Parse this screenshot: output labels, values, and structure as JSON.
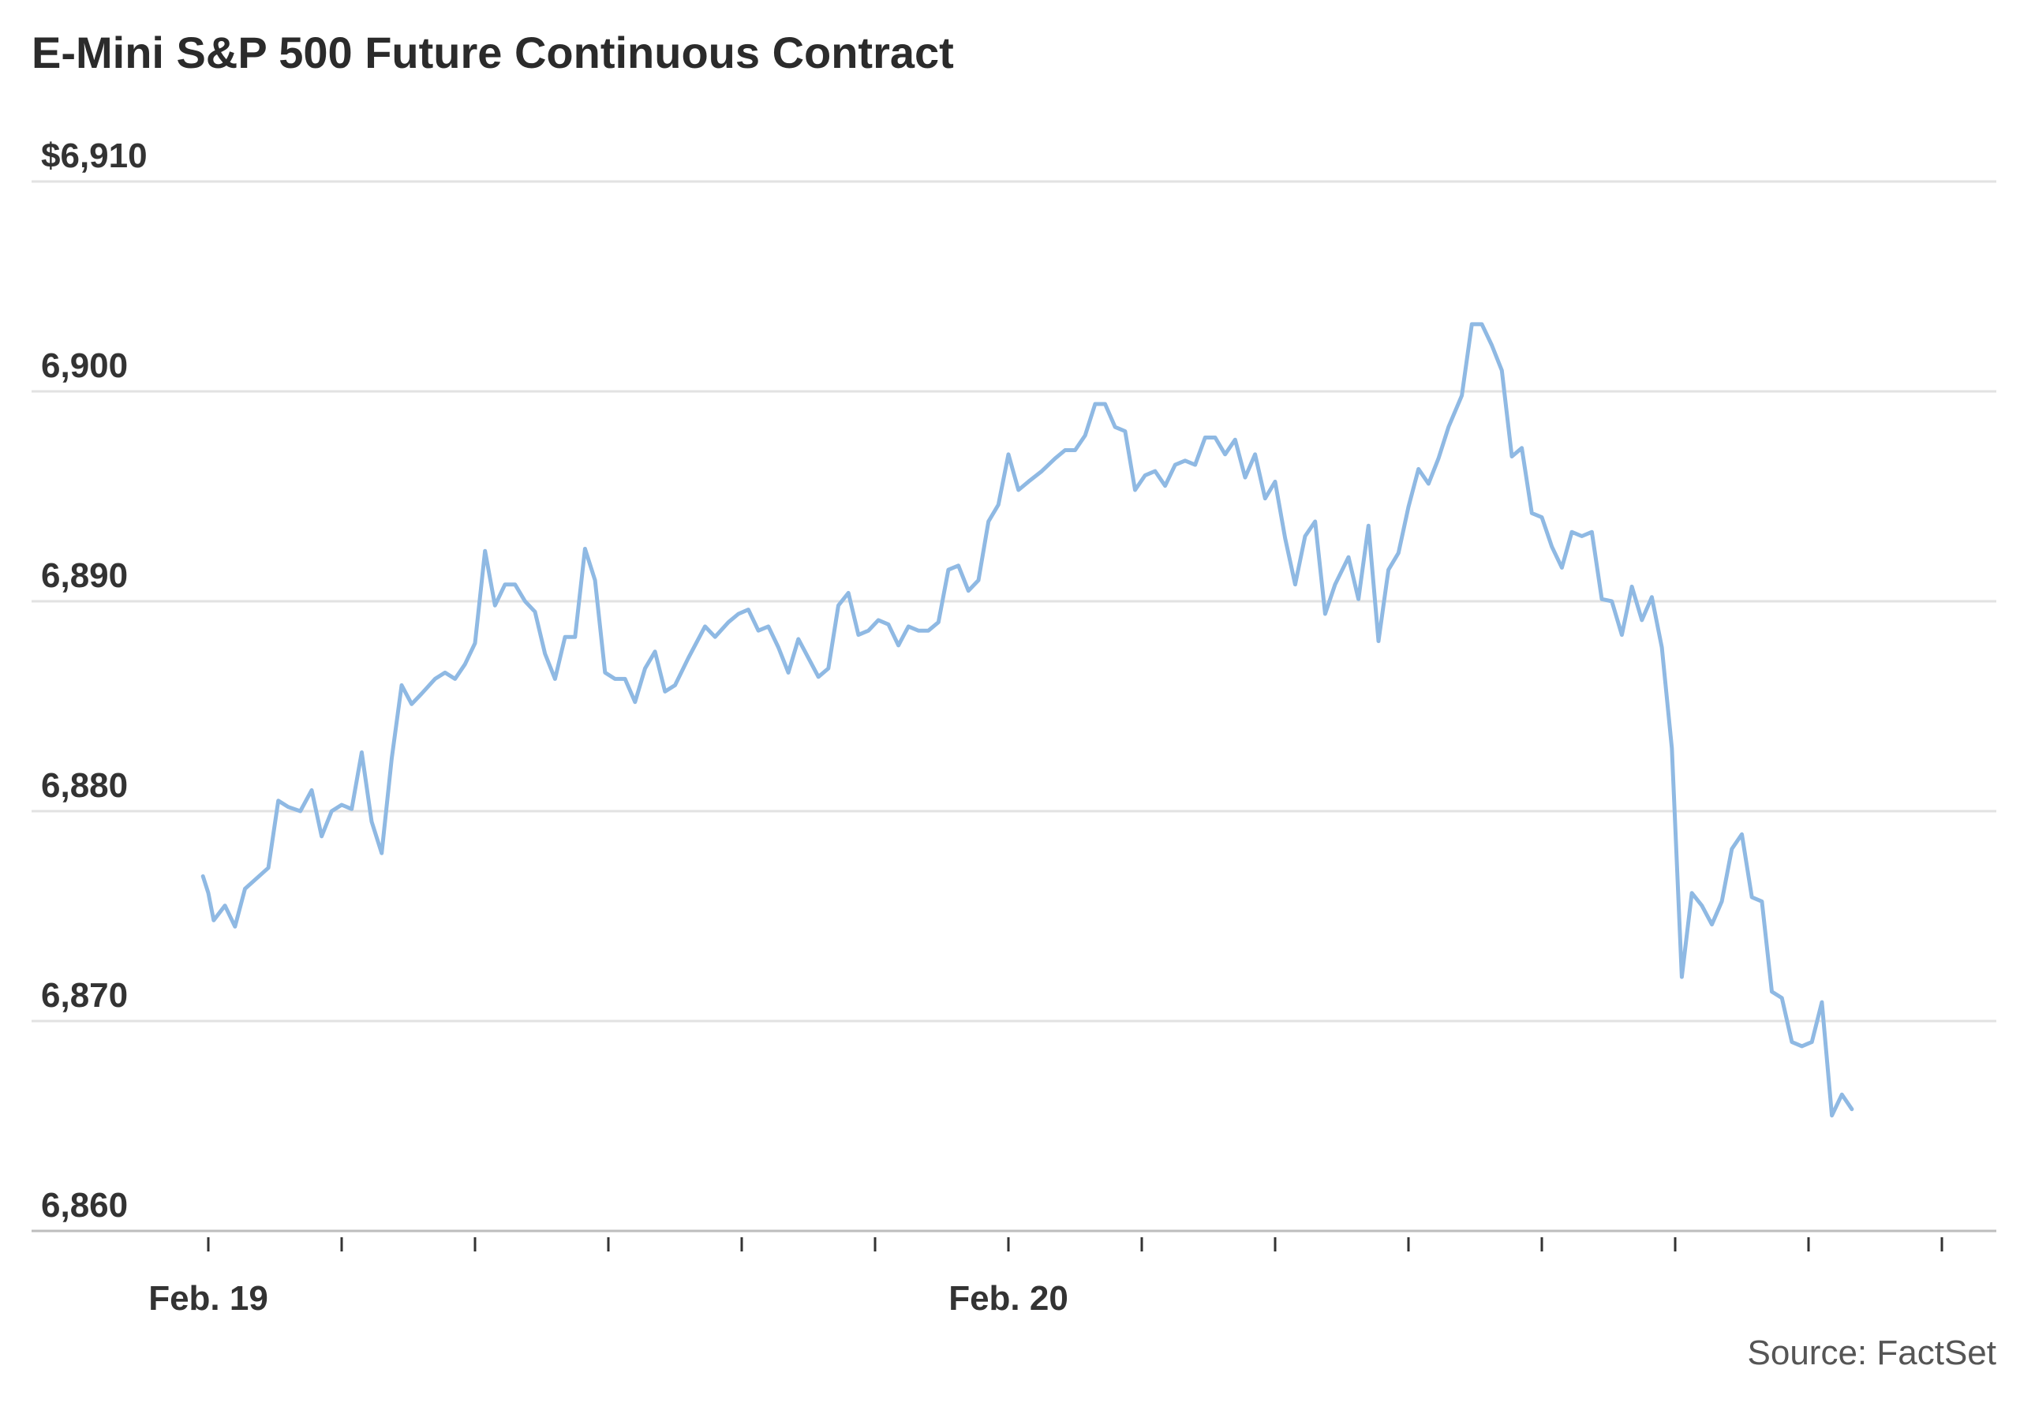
{
  "chart_data": {
    "type": "line",
    "title": "E-Mini S&P 500 Future Continuous Contract",
    "source": "Source: FactSet",
    "ylim": [
      6860,
      6910
    ],
    "y_ticks": [
      {
        "value": 6910,
        "label": "$6,910"
      },
      {
        "value": 6900,
        "label": "6,900"
      },
      {
        "value": 6890,
        "label": "6,890"
      },
      {
        "value": 6880,
        "label": "6,880"
      },
      {
        "value": 6870,
        "label": "6,870"
      },
      {
        "value": 6860,
        "label": "6,860"
      }
    ],
    "x_labels": [
      {
        "t": 0,
        "label": "Feb. 19"
      },
      {
        "t": 12,
        "label": "Feb. 20"
      }
    ],
    "x_minor_ticks": [
      0,
      2,
      4,
      6,
      8,
      10,
      12,
      14,
      16,
      18,
      20,
      22,
      24,
      26
    ],
    "grid": true,
    "line_color": "#8fb9e3",
    "series": [
      {
        "values": [
          [
            -0.08,
            6876.9
          ],
          [
            0.0,
            6876.1
          ],
          [
            0.08,
            6874.8
          ],
          [
            0.25,
            6875.5
          ],
          [
            0.4,
            6874.5
          ],
          [
            0.55,
            6876.3
          ],
          [
            0.9,
            6877.3
          ],
          [
            1.05,
            6880.5
          ],
          [
            1.2,
            6880.2
          ],
          [
            1.38,
            6880.0
          ],
          [
            1.55,
            6881.0
          ],
          [
            1.7,
            6878.8
          ],
          [
            1.85,
            6880.0
          ],
          [
            2.0,
            6880.3
          ],
          [
            2.15,
            6880.1
          ],
          [
            2.3,
            6882.8
          ],
          [
            2.45,
            6879.5
          ],
          [
            2.6,
            6878.0
          ],
          [
            2.75,
            6882.5
          ],
          [
            2.9,
            6886.0
          ],
          [
            3.05,
            6885.1
          ],
          [
            3.2,
            6885.6
          ],
          [
            3.4,
            6886.3
          ],
          [
            3.55,
            6886.6
          ],
          [
            3.7,
            6886.3
          ],
          [
            3.85,
            6887.0
          ],
          [
            4.0,
            6888.0
          ],
          [
            4.15,
            6892.4
          ],
          [
            4.3,
            6889.8
          ],
          [
            4.45,
            6890.8
          ],
          [
            4.6,
            6890.8
          ],
          [
            4.75,
            6890.0
          ],
          [
            4.9,
            6889.5
          ],
          [
            5.05,
            6887.5
          ],
          [
            5.2,
            6886.3
          ],
          [
            5.35,
            6888.3
          ],
          [
            5.5,
            6888.3
          ],
          [
            5.65,
            6892.5
          ],
          [
            5.8,
            6891.0
          ],
          [
            5.95,
            6886.6
          ],
          [
            6.1,
            6886.3
          ],
          [
            6.25,
            6886.3
          ],
          [
            6.4,
            6885.2
          ],
          [
            6.55,
            6886.8
          ],
          [
            6.7,
            6887.6
          ],
          [
            6.85,
            6885.7
          ],
          [
            7.0,
            6886.0
          ],
          [
            7.2,
            6887.3
          ],
          [
            7.45,
            6888.8
          ],
          [
            7.6,
            6888.3
          ],
          [
            7.8,
            6889.0
          ],
          [
            7.95,
            6889.4
          ],
          [
            8.1,
            6889.6
          ],
          [
            8.25,
            6888.6
          ],
          [
            8.4,
            6888.8
          ],
          [
            8.55,
            6887.8
          ],
          [
            8.7,
            6886.6
          ],
          [
            8.85,
            6888.2
          ],
          [
            9.0,
            6887.3
          ],
          [
            9.15,
            6886.4
          ],
          [
            9.3,
            6886.8
          ],
          [
            9.45,
            6889.8
          ],
          [
            9.6,
            6890.4
          ],
          [
            9.75,
            6888.4
          ],
          [
            9.9,
            6888.6
          ],
          [
            10.05,
            6889.1
          ],
          [
            10.2,
            6888.9
          ],
          [
            10.35,
            6887.9
          ],
          [
            10.5,
            6888.8
          ],
          [
            10.65,
            6888.6
          ],
          [
            10.8,
            6888.6
          ],
          [
            10.95,
            6889.0
          ],
          [
            11.1,
            6891.5
          ],
          [
            11.25,
            6891.7
          ],
          [
            11.4,
            6890.5
          ],
          [
            11.55,
            6891.0
          ],
          [
            11.7,
            6893.8
          ],
          [
            11.85,
            6894.6
          ],
          [
            12.0,
            6897.0
          ],
          [
            12.15,
            6895.3
          ],
          [
            12.3,
            6895.7
          ],
          [
            12.5,
            6896.2
          ],
          [
            12.7,
            6896.8
          ],
          [
            12.85,
            6897.2
          ],
          [
            13.0,
            6897.2
          ],
          [
            13.15,
            6897.9
          ],
          [
            13.3,
            6899.4
          ],
          [
            13.45,
            6899.4
          ],
          [
            13.6,
            6898.3
          ],
          [
            13.75,
            6898.1
          ],
          [
            13.9,
            6895.3
          ],
          [
            14.05,
            6896.0
          ],
          [
            14.2,
            6896.2
          ],
          [
            14.35,
            6895.5
          ],
          [
            14.5,
            6896.5
          ],
          [
            14.65,
            6896.7
          ],
          [
            14.8,
            6896.5
          ],
          [
            14.95,
            6897.8
          ],
          [
            15.1,
            6897.8
          ],
          [
            15.25,
            6897.0
          ],
          [
            15.4,
            6897.7
          ],
          [
            15.55,
            6895.9
          ],
          [
            15.7,
            6897.0
          ],
          [
            15.85,
            6894.9
          ],
          [
            16.0,
            6895.7
          ],
          [
            16.15,
            6893.0
          ],
          [
            16.3,
            6890.8
          ],
          [
            16.45,
            6893.1
          ],
          [
            16.6,
            6893.8
          ],
          [
            16.75,
            6889.4
          ],
          [
            16.9,
            6890.8
          ],
          [
            17.1,
            6892.1
          ],
          [
            17.25,
            6890.1
          ],
          [
            17.4,
            6893.6
          ],
          [
            17.55,
            6888.1
          ],
          [
            17.7,
            6891.5
          ],
          [
            17.85,
            6892.3
          ],
          [
            18.0,
            6894.5
          ],
          [
            18.15,
            6896.3
          ],
          [
            18.3,
            6895.6
          ],
          [
            18.45,
            6896.8
          ],
          [
            18.6,
            6898.3
          ],
          [
            18.8,
            6899.8
          ],
          [
            18.95,
            6903.2
          ],
          [
            19.1,
            6903.2
          ],
          [
            19.25,
            6902.2
          ],
          [
            19.4,
            6901.0
          ],
          [
            19.55,
            6896.9
          ],
          [
            19.7,
            6897.3
          ],
          [
            19.85,
            6894.2
          ],
          [
            20.0,
            6894.0
          ],
          [
            20.15,
            6892.6
          ],
          [
            20.3,
            6891.6
          ],
          [
            20.45,
            6893.3
          ],
          [
            20.6,
            6893.1
          ],
          [
            20.75,
            6893.3
          ],
          [
            20.9,
            6890.1
          ],
          [
            21.05,
            6890.0
          ],
          [
            21.2,
            6888.4
          ],
          [
            21.35,
            6890.7
          ],
          [
            21.5,
            6889.1
          ],
          [
            21.65,
            6890.2
          ],
          [
            21.8,
            6887.8
          ],
          [
            21.95,
            6883.0
          ],
          [
            22.1,
            6872.1
          ],
          [
            22.25,
            6876.1
          ],
          [
            22.4,
            6875.5
          ],
          [
            22.55,
            6874.6
          ],
          [
            22.7,
            6875.7
          ],
          [
            22.85,
            6878.2
          ],
          [
            23.0,
            6878.9
          ],
          [
            23.15,
            6875.9
          ],
          [
            23.3,
            6875.7
          ],
          [
            23.45,
            6871.4
          ],
          [
            23.6,
            6871.1
          ],
          [
            23.75,
            6869.0
          ],
          [
            23.9,
            6868.8
          ],
          [
            24.05,
            6869.0
          ],
          [
            24.2,
            6870.9
          ],
          [
            24.35,
            6865.5
          ],
          [
            24.5,
            6866.5
          ],
          [
            24.65,
            6865.8
          ]
        ]
      }
    ]
  }
}
